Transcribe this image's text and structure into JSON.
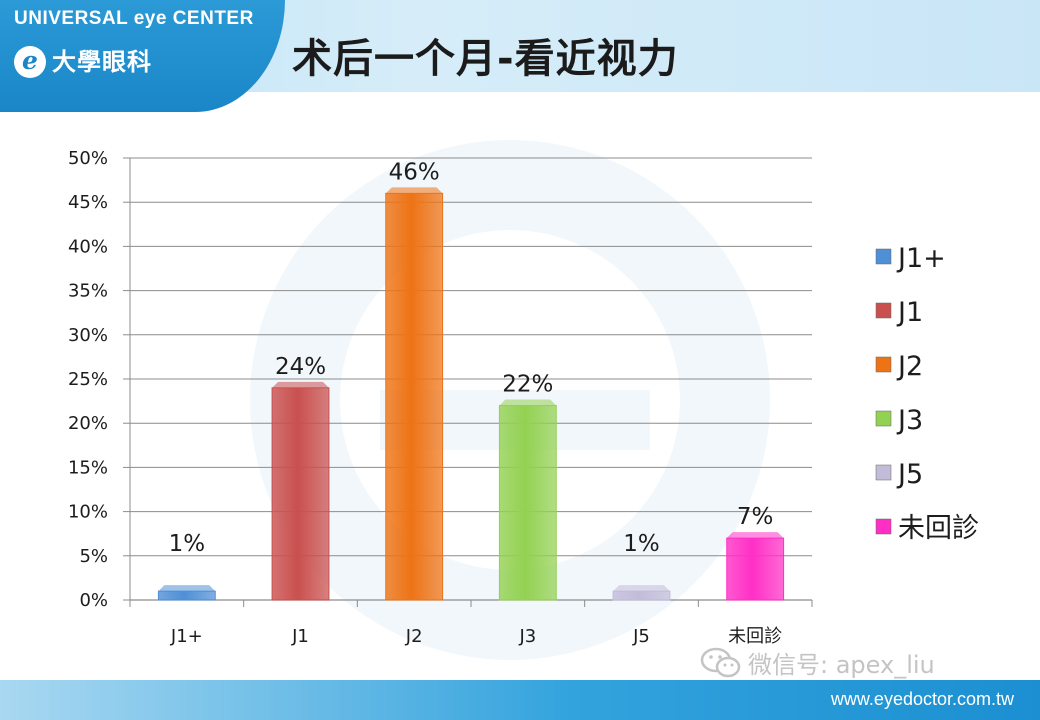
{
  "header": {
    "brand_en": "UNIVERSAL eye CENTER",
    "brand_logo_letter": "e",
    "brand_cn": "大學眼科",
    "title": "术后一个月-看近视力"
  },
  "footer": {
    "url": "www.eyedoctor.com.tw",
    "watermark": "微信号: apex_liu"
  },
  "chart_data": {
    "type": "bar",
    "title": "",
    "xlabel": "",
    "ylabel": "",
    "categories": [
      "J1+",
      "J1",
      "J2",
      "J3",
      "J5",
      "未回診"
    ],
    "values": [
      1,
      24,
      46,
      22,
      1,
      7
    ],
    "data_labels": [
      "1%",
      "24%",
      "46%",
      "22%",
      "1%",
      "7%"
    ],
    "colors": [
      "#4f8fd6",
      "#c9504e",
      "#ee7315",
      "#93d152",
      "#c3bcd9",
      "#ff2fc6"
    ],
    "ylim": [
      0,
      50
    ],
    "yticks": [
      "0%",
      "5%",
      "10%",
      "15%",
      "20%",
      "25%",
      "30%",
      "35%",
      "40%",
      "45%",
      "50%"
    ],
    "grid": true,
    "legend": {
      "position": "right",
      "entries": [
        "J1+",
        "J1",
        "J2",
        "J3",
        "J5",
        "未回診"
      ]
    }
  }
}
